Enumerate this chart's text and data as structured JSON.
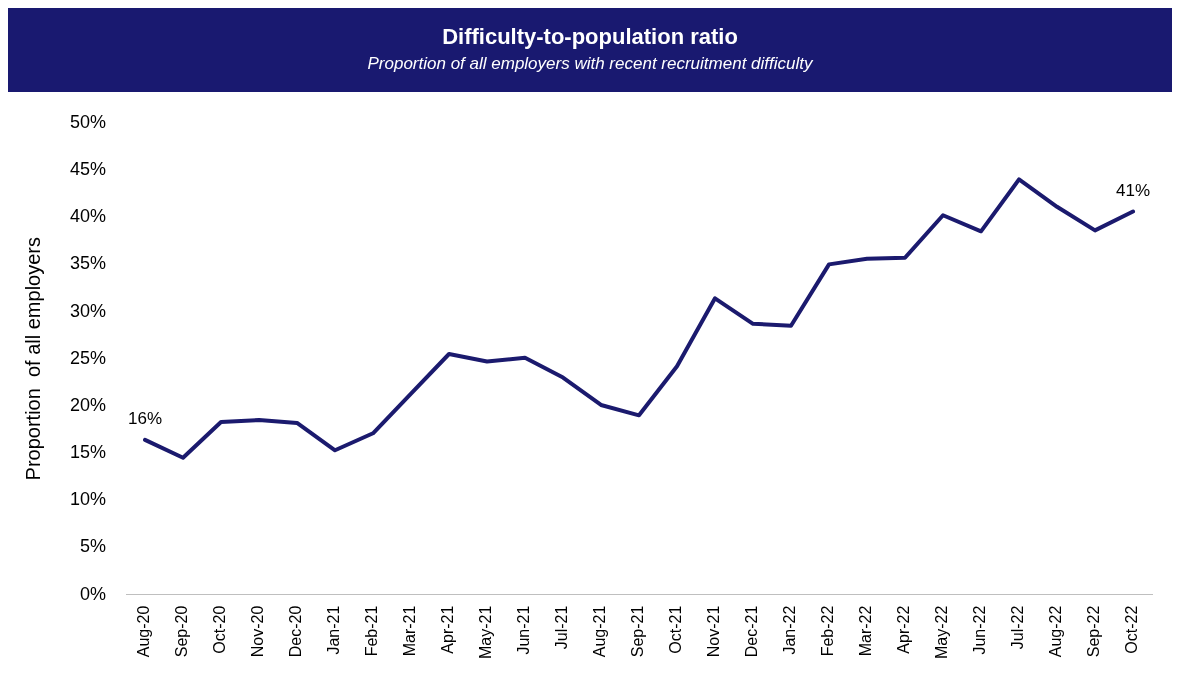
{
  "chart_data": {
    "type": "line",
    "title": "Difficulty-to-population ratio",
    "subtitle": "Proportion of all employers with recent recruitment difficulty",
    "ylabel": "Proportion  of all employers",
    "categories": [
      "Aug-20",
      "Sep-20",
      "Oct-20",
      "Nov-20",
      "Dec-20",
      "Jan-21",
      "Feb-21",
      "Mar-21",
      "Apr-21",
      "May-21",
      "Jun-21",
      "Jul-21",
      "Aug-21",
      "Sep-21",
      "Oct-21",
      "Nov-21",
      "Dec-21",
      "Jan-22",
      "Feb-22",
      "Mar-22",
      "Apr-22",
      "May-22",
      "Jun-22",
      "Jul-22",
      "Aug-22",
      "Sep-22",
      "Oct-22"
    ],
    "series": [
      {
        "color": "#1b1a6e",
        "values": [
          16.4,
          14.5,
          18.3,
          18.5,
          18.2,
          15.3,
          17.1,
          21.3,
          25.5,
          24.7,
          25.1,
          23.0,
          20.1,
          19.0,
          24.2,
          31.4,
          28.7,
          28.5,
          35.0,
          35.6,
          35.7,
          40.2,
          38.5,
          44.0,
          41.1,
          38.6,
          40.6
        ],
        "value_labels": [
          "16%",
          null,
          null,
          null,
          null,
          null,
          null,
          null,
          null,
          null,
          null,
          null,
          null,
          null,
          null,
          null,
          null,
          null,
          null,
          null,
          null,
          null,
          null,
          null,
          null,
          null,
          "41%"
        ]
      }
    ],
    "ylim": [
      0,
      50
    ],
    "yticks": [
      {
        "value": 0,
        "label": "0%"
      },
      {
        "value": 5,
        "label": "5%"
      },
      {
        "value": 10,
        "label": "10%"
      },
      {
        "value": 15,
        "label": "15%"
      },
      {
        "value": 20,
        "label": "20%"
      },
      {
        "value": 25,
        "label": "25%"
      },
      {
        "value": 30,
        "label": "30%"
      },
      {
        "value": 35,
        "label": "35%"
      },
      {
        "value": 40,
        "label": "40%"
      },
      {
        "value": 45,
        "label": "45%"
      },
      {
        "value": 50,
        "label": "50%"
      }
    ],
    "grid": false,
    "legend": false,
    "marker": "none",
    "line_style": "solid"
  }
}
